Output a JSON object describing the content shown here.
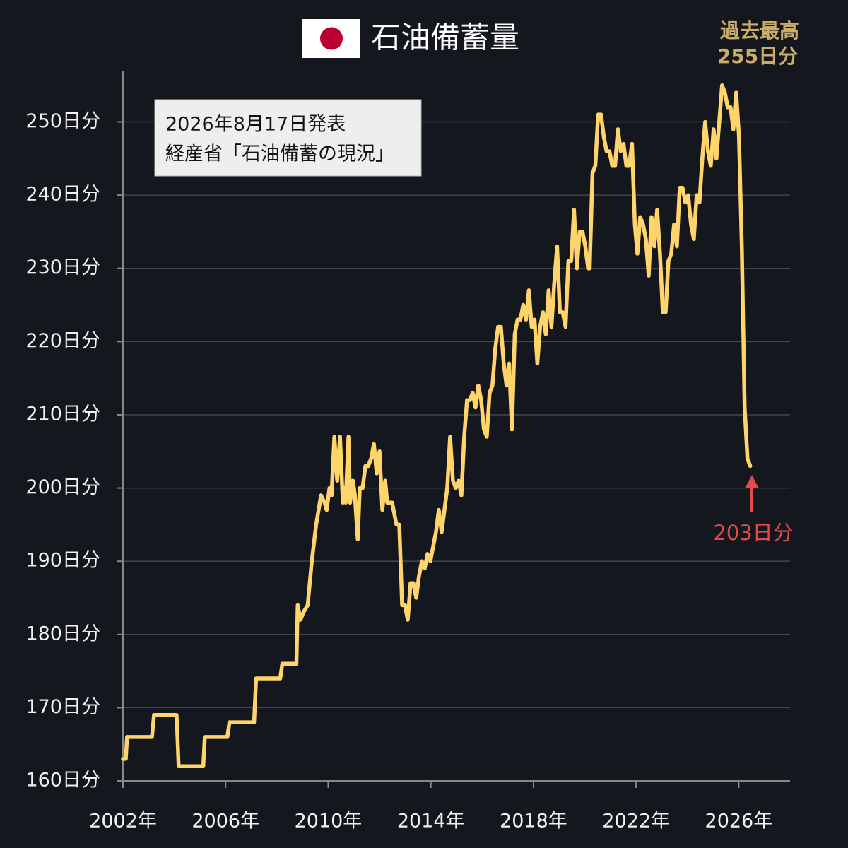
{
  "chart_data": {
    "type": "line",
    "title": "石油備蓄量",
    "source_note": [
      "2026年8月17日発表",
      "経産省「石油備蓄の現況」"
    ],
    "peak_label": [
      "過去最高",
      "255日分"
    ],
    "last_label": "203日分",
    "xlim": [
      2002,
      2028
    ],
    "ylim": [
      160,
      257
    ],
    "grid": true,
    "xticks": [
      {
        "value": 2002,
        "label": "2002年"
      },
      {
        "value": 2006,
        "label": "2006年"
      },
      {
        "value": 2010,
        "label": "2010年"
      },
      {
        "value": 2014,
        "label": "2014年"
      },
      {
        "value": 2018,
        "label": "2018年"
      },
      {
        "value": 2022,
        "label": "2022年"
      },
      {
        "value": 2026,
        "label": "2026年"
      }
    ],
    "yticks": [
      {
        "value": 160,
        "label": "160日分"
      },
      {
        "value": 170,
        "label": "170日分"
      },
      {
        "value": 180,
        "label": "180日分"
      },
      {
        "value": 190,
        "label": "190日分"
      },
      {
        "value": 200,
        "label": "200日分"
      },
      {
        "value": 210,
        "label": "210日分"
      },
      {
        "value": 220,
        "label": "220日分"
      },
      {
        "value": 230,
        "label": "230日分"
      },
      {
        "value": 240,
        "label": "240日分"
      },
      {
        "value": 250,
        "label": "250日分"
      }
    ],
    "x": [
      2002.0,
      2002.11,
      2002.16,
      2003.13,
      2003.21,
      2004.09,
      2004.17,
      2005.13,
      2005.19,
      2006.07,
      2006.15,
      2007.11,
      2007.19,
      2008.13,
      2008.21,
      2008.76,
      2008.81,
      2008.92,
      2009.03,
      2009.2,
      2009.36,
      2009.53,
      2009.72,
      2009.86,
      2009.94,
      2010.05,
      2010.13,
      2010.24,
      2010.35,
      2010.46,
      2010.57,
      2010.63,
      2010.68,
      2010.79,
      2010.85,
      2010.96,
      2011.04,
      2011.15,
      2011.23,
      2011.34,
      2011.45,
      2011.56,
      2011.67,
      2011.78,
      2011.89,
      2012.0,
      2012.11,
      2012.22,
      2012.3,
      2012.49,
      2012.66,
      2012.77,
      2012.88,
      2012.99,
      2013.1,
      2013.21,
      2013.32,
      2013.43,
      2013.54,
      2013.65,
      2013.76,
      2013.87,
      2013.98,
      2014.09,
      2014.2,
      2014.31,
      2014.42,
      2014.53,
      2014.64,
      2014.75,
      2014.86,
      2014.97,
      2015.08,
      2015.19,
      2015.3,
      2015.41,
      2015.52,
      2015.63,
      2015.74,
      2015.85,
      2015.96,
      2016.07,
      2016.18,
      2016.29,
      2016.4,
      2016.51,
      2016.62,
      2016.73,
      2016.84,
      2016.95,
      2017.05,
      2017.16,
      2017.27,
      2017.38,
      2017.49,
      2017.6,
      2017.71,
      2017.82,
      2017.93,
      2018.04,
      2018.15,
      2018.26,
      2018.37,
      2018.48,
      2018.59,
      2018.7,
      2018.81,
      2018.92,
      2019.03,
      2019.14,
      2019.25,
      2019.36,
      2019.47,
      2019.58,
      2019.69,
      2019.8,
      2019.91,
      2020.02,
      2020.13,
      2020.19,
      2020.3,
      2020.41,
      2020.52,
      2020.63,
      2020.74,
      2020.85,
      2020.96,
      2021.07,
      2021.18,
      2021.29,
      2021.4,
      2021.51,
      2021.62,
      2021.73,
      2021.84,
      2021.95,
      2022.05,
      2022.16,
      2022.27,
      2022.38,
      2022.49,
      2022.6,
      2022.71,
      2022.82,
      2022.93,
      2023.04,
      2023.15,
      2023.26,
      2023.37,
      2023.48,
      2023.59,
      2023.7,
      2023.81,
      2023.92,
      2024.03,
      2024.14,
      2024.25,
      2024.36,
      2024.47,
      2024.58,
      2024.69,
      2024.8,
      2024.91,
      2025.02,
      2025.13,
      2025.24,
      2025.35,
      2025.46,
      2025.57,
      2025.68,
      2025.79,
      2025.9,
      2026.01,
      2026.12,
      2026.23,
      2026.34,
      2026.45
    ],
    "series": [
      {
        "name": "石油備蓄量",
        "color": "#ffd46b",
        "values": [
          163,
          163,
          166,
          166,
          169,
          169,
          162,
          162,
          166,
          166,
          168,
          168,
          174,
          174,
          176,
          176,
          184,
          182,
          183,
          184,
          190,
          195,
          199,
          198,
          197,
          200,
          199,
          207,
          201,
          207,
          198,
          200,
          198,
          207,
          198,
          201,
          199,
          193,
          200,
          200,
          203,
          203,
          204,
          206,
          202,
          205,
          197,
          201,
          198,
          198,
          195,
          195,
          184,
          184,
          182,
          187,
          187,
          185,
          188,
          190,
          189,
          191,
          190,
          192,
          194,
          197,
          194,
          197,
          200,
          207,
          201,
          200,
          201,
          199,
          207,
          212,
          212,
          213,
          211,
          214,
          212,
          208,
          207,
          213,
          214,
          219,
          222,
          222,
          217,
          214,
          217,
          208,
          221,
          223,
          223,
          225,
          223,
          227,
          222,
          223,
          217,
          222,
          224,
          221,
          227,
          222,
          228,
          233,
          224,
          224,
          222,
          231,
          231,
          238,
          230,
          235,
          235,
          233,
          230,
          230,
          243,
          244,
          251,
          251,
          248,
          246,
          246,
          244,
          244,
          249,
          246,
          247,
          244,
          244,
          247,
          236,
          232,
          237,
          236,
          234,
          229,
          237,
          233,
          238,
          232,
          224,
          224,
          231,
          232,
          236,
          233,
          241,
          241,
          239,
          240,
          236,
          234,
          240,
          239,
          245,
          250,
          246,
          244,
          249,
          245,
          250,
          255,
          254,
          252,
          252,
          249,
          254,
          248,
          233,
          211,
          204,
          203
        ]
      }
    ]
  }
}
